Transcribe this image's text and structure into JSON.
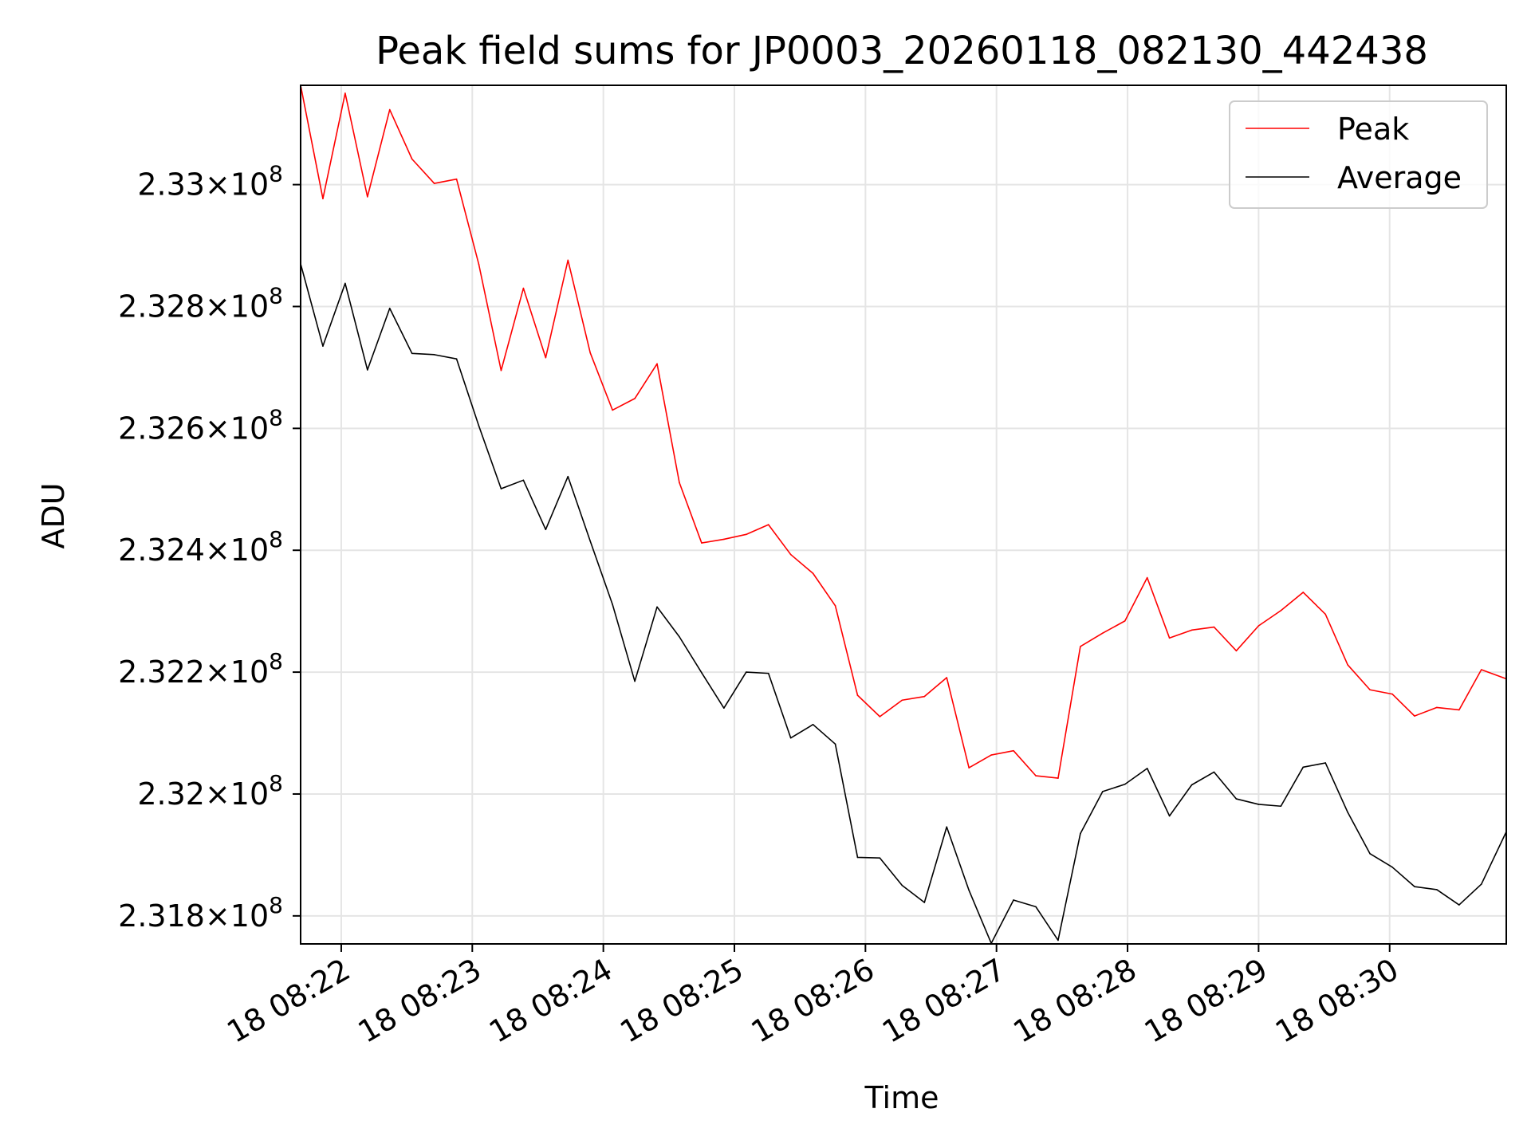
{
  "chart_data": {
    "type": "line",
    "title": "Peak field sums for JP0003_20260118_082130_442438",
    "xlabel": "Time",
    "ylabel": "ADU",
    "grid": true,
    "legend_position": "top-right",
    "xlim": [
      81.69,
      90.89
    ],
    "ylim": [
      231754000.0,
      233163000.0
    ],
    "x_ticks": [
      {
        "value": 82,
        "label": "18 08:22"
      },
      {
        "value": 83,
        "label": "18 08:23"
      },
      {
        "value": 84,
        "label": "18 08:24"
      },
      {
        "value": 85,
        "label": "18 08:25"
      },
      {
        "value": 86,
        "label": "18 08:26"
      },
      {
        "value": 87,
        "label": "18 08:27"
      },
      {
        "value": 88,
        "label": "18 08:28"
      },
      {
        "value": 89,
        "label": "18 08:29"
      },
      {
        "value": 90,
        "label": "18 08:30"
      }
    ],
    "y_ticks": [
      {
        "value": 231800000.0,
        "mantissa": "2.318",
        "exponent": "8"
      },
      {
        "value": 232000000.0,
        "mantissa": "2.32",
        "exponent": "8"
      },
      {
        "value": 232200000.0,
        "mantissa": "2.322",
        "exponent": "8"
      },
      {
        "value": 232400000.0,
        "mantissa": "2.324",
        "exponent": "8"
      },
      {
        "value": 232600000.0,
        "mantissa": "2.326",
        "exponent": "8"
      },
      {
        "value": 232800000.0,
        "mantissa": "2.328",
        "exponent": "8"
      },
      {
        "value": 233000000.0,
        "mantissa": "2.33",
        "exponent": "8"
      }
    ],
    "times_note": "x values are minutes past 07:00 on the 18th (e.g. 82 = 08:22)",
    "x": [
      81.69,
      81.86,
      82.03,
      82.2,
      82.37,
      82.54,
      82.71,
      82.88,
      83.05,
      83.22,
      83.39,
      83.56,
      83.73,
      83.9,
      84.07,
      84.24,
      84.41,
      84.58,
      84.75,
      84.92,
      85.09,
      85.26,
      85.43,
      85.6,
      85.77,
      85.94,
      86.11,
      86.28,
      86.45,
      86.62,
      86.79,
      86.96,
      87.13,
      87.3,
      87.47,
      87.64,
      87.81,
      87.98,
      88.15,
      88.32,
      88.49,
      88.66,
      88.83,
      89.0,
      89.17,
      89.34,
      89.51,
      89.68,
      89.85,
      90.02,
      90.19,
      90.36,
      90.53,
      90.7,
      90.89
    ],
    "series": [
      {
        "name": "Peak",
        "color": "#ff0000",
        "values": [
          233163000.0,
          232977000.0,
          233150000.0,
          232980000.0,
          233123000.0,
          233042000.0,
          233002000.0,
          233009000.0,
          232869000.0,
          232695000.0,
          232830000.0,
          232716000.0,
          232876000.0,
          232724000.0,
          232630000.0,
          232649000.0,
          232706000.0,
          232511000.0,
          232412000.0,
          232418000.0,
          232426000.0,
          232442000.0,
          232393000.0,
          232362000.0,
          232309000.0,
          232162000.0,
          232127000.0,
          232154000.0,
          232160000.0,
          232191000.0,
          232043000.0,
          232064000.0,
          232071000.0,
          232030000.0,
          232026000.0,
          232242000.0,
          232264000.0,
          232284000.0,
          232355000.0,
          232256000.0,
          232269000.0,
          232274000.0,
          232235000.0,
          232276000.0,
          232301000.0,
          232331000.0,
          232295000.0,
          232212000.0,
          232171000.0,
          232164000.0,
          232128000.0,
          232142000.0,
          232138000.0,
          232204000.0,
          232189000.0
        ]
      },
      {
        "name": "Average",
        "color": "#000000",
        "values": [
          232870000.0,
          232735000.0,
          232838000.0,
          232696000.0,
          232797000.0,
          232723000.0,
          232721000.0,
          232714000.0,
          232604000.0,
          232501000.0,
          232515000.0,
          232434000.0,
          232521000.0,
          232415000.0,
          232311000.0,
          232185000.0,
          232307000.0,
          232258000.0,
          232199000.0,
          232141000.0,
          232200000.0,
          232198000.0,
          232092000.0,
          232114000.0,
          232082000.0,
          231896000.0,
          231895000.0,
          231850000.0,
          231822000.0,
          231946000.0,
          231842000.0,
          231755000.0,
          231826000.0,
          231815000.0,
          231760000.0,
          231935000.0,
          232004000.0,
          232016000.0,
          232042000.0,
          231964000.0,
          232015000.0,
          232036000.0,
          231992000.0,
          231983000.0,
          231980000.0,
          232044000.0,
          232051000.0,
          231970000.0,
          231902000.0,
          231880000.0,
          231848000.0,
          231843000.0,
          231818000.0,
          231852000.0,
          231938000.0
        ]
      }
    ]
  }
}
